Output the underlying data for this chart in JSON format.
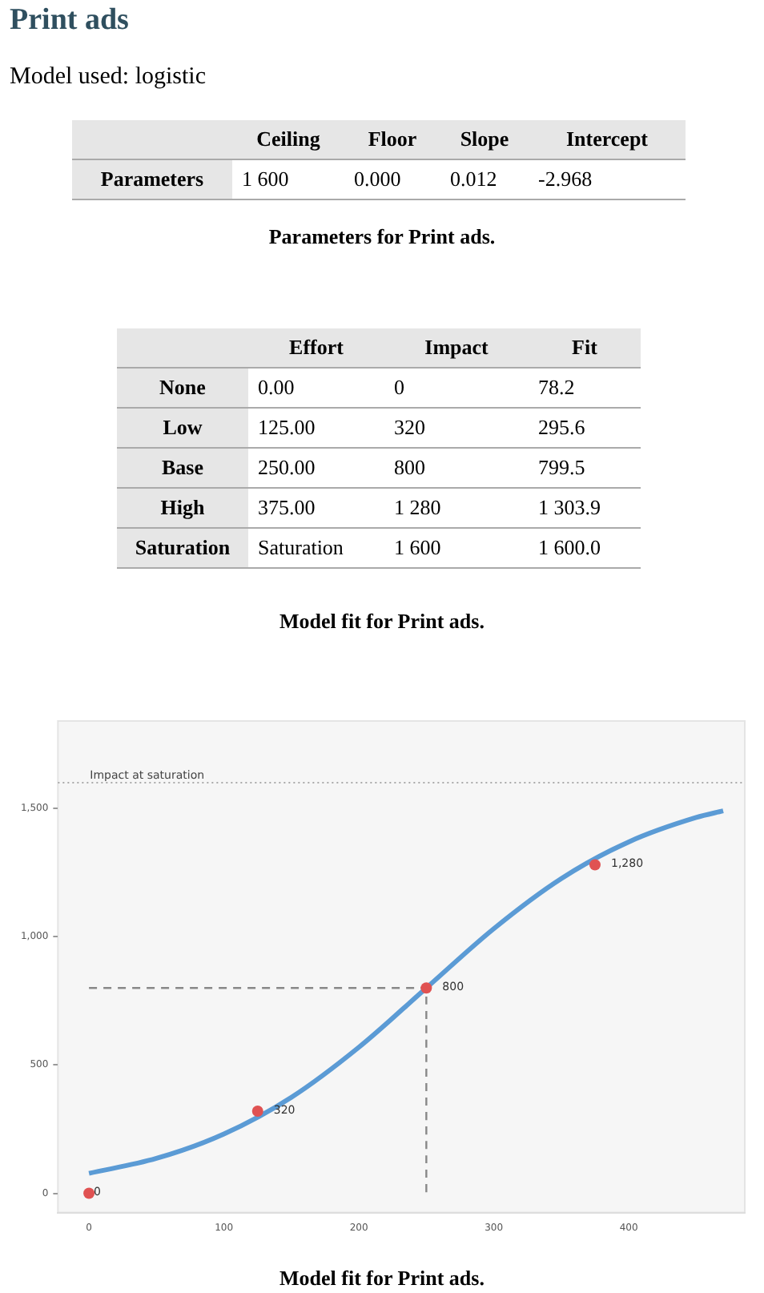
{
  "chart_data": [
    {
      "type": "other",
      "title": "Print ads",
      "subtitle": "Model used: logistic",
      "categories": [
        "Ceiling",
        "Floor",
        "Slope",
        "Intercept"
      ],
      "y_categories": [
        "Parameters"
      ],
      "cell_labels": [
        [
          "1 600",
          "0.000",
          "0.012",
          "-2.968"
        ]
      ],
      "annotations": [
        "Parameters for Print ads."
      ]
    },
    {
      "type": "other",
      "categories": [
        "Effort",
        "Impact",
        "Fit"
      ],
      "y_categories": [
        "None",
        "Low",
        "Base",
        "High",
        "Saturation"
      ],
      "cell_labels": [
        [
          "0.00",
          "0",
          "78.2"
        ],
        [
          "125.00",
          "320",
          "295.6"
        ],
        [
          "250.00",
          "800",
          "799.5"
        ],
        [
          "375.00",
          "1 280",
          "1 303.9"
        ],
        [
          "Saturation",
          "1 600",
          "1 600.0"
        ]
      ],
      "annotations": [
        "Model fit for Print ads."
      ]
    },
    {
      "type": "line",
      "xlim": [
        -23,
        486
      ],
      "ylim": [
        -75,
        1840
      ],
      "xticks": [
        0,
        100,
        200,
        300,
        400
      ],
      "yticks": [
        0,
        500,
        {
          "value": 1000,
          "label": "1,000"
        },
        {
          "value": 1500,
          "label": "1,500"
        }
      ],
      "grid": false,
      "legend": false,
      "series": [
        {
          "type": "line",
          "color": "#5b9bd5",
          "marker": "none",
          "x": [
            0,
            50,
            100,
            150,
            200,
            250,
            300,
            350,
            400,
            450,
            470
          ],
          "values": [
            78,
            136,
            231,
            374,
            569,
            800,
            1031,
            1226,
            1369,
            1464,
            1490
          ]
        },
        {
          "type": "line",
          "color": "#888888",
          "line_style": "dashed",
          "marker": "none",
          "x": [
            0,
            250,
            250
          ],
          "values": [
            800,
            800,
            0
          ]
        },
        {
          "type": "scatter",
          "color": "#e05252",
          "marker": "circle",
          "x": [
            0,
            125,
            250,
            375
          ],
          "values": [
            0,
            320,
            800,
            1280
          ],
          "value_labels": [
            "0",
            "320",
            "800",
            "1,280"
          ]
        }
      ],
      "ref_lines": [
        {
          "axis": "y",
          "value": 1600,
          "label": "Impact at saturation",
          "line_style": "dotted",
          "color": "#aaaaaa"
        }
      ],
      "annotations": [
        "Model fit for Print ads."
      ]
    }
  ]
}
